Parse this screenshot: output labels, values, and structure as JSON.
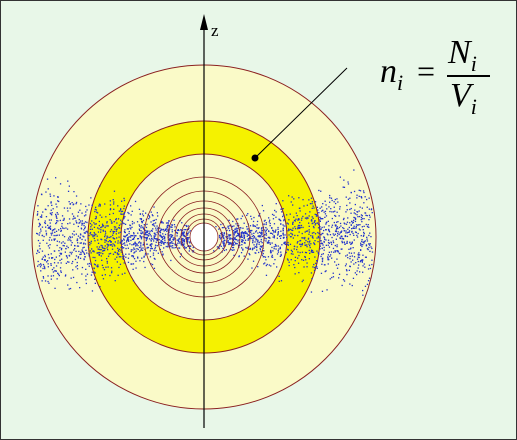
{
  "axis_label": "z",
  "formula": {
    "lhs": "n",
    "lhs_sub": "i",
    "equals": "=",
    "numerator": "N",
    "numerator_sub": "i",
    "denominator": "V",
    "denominator_sub": "i"
  }
}
